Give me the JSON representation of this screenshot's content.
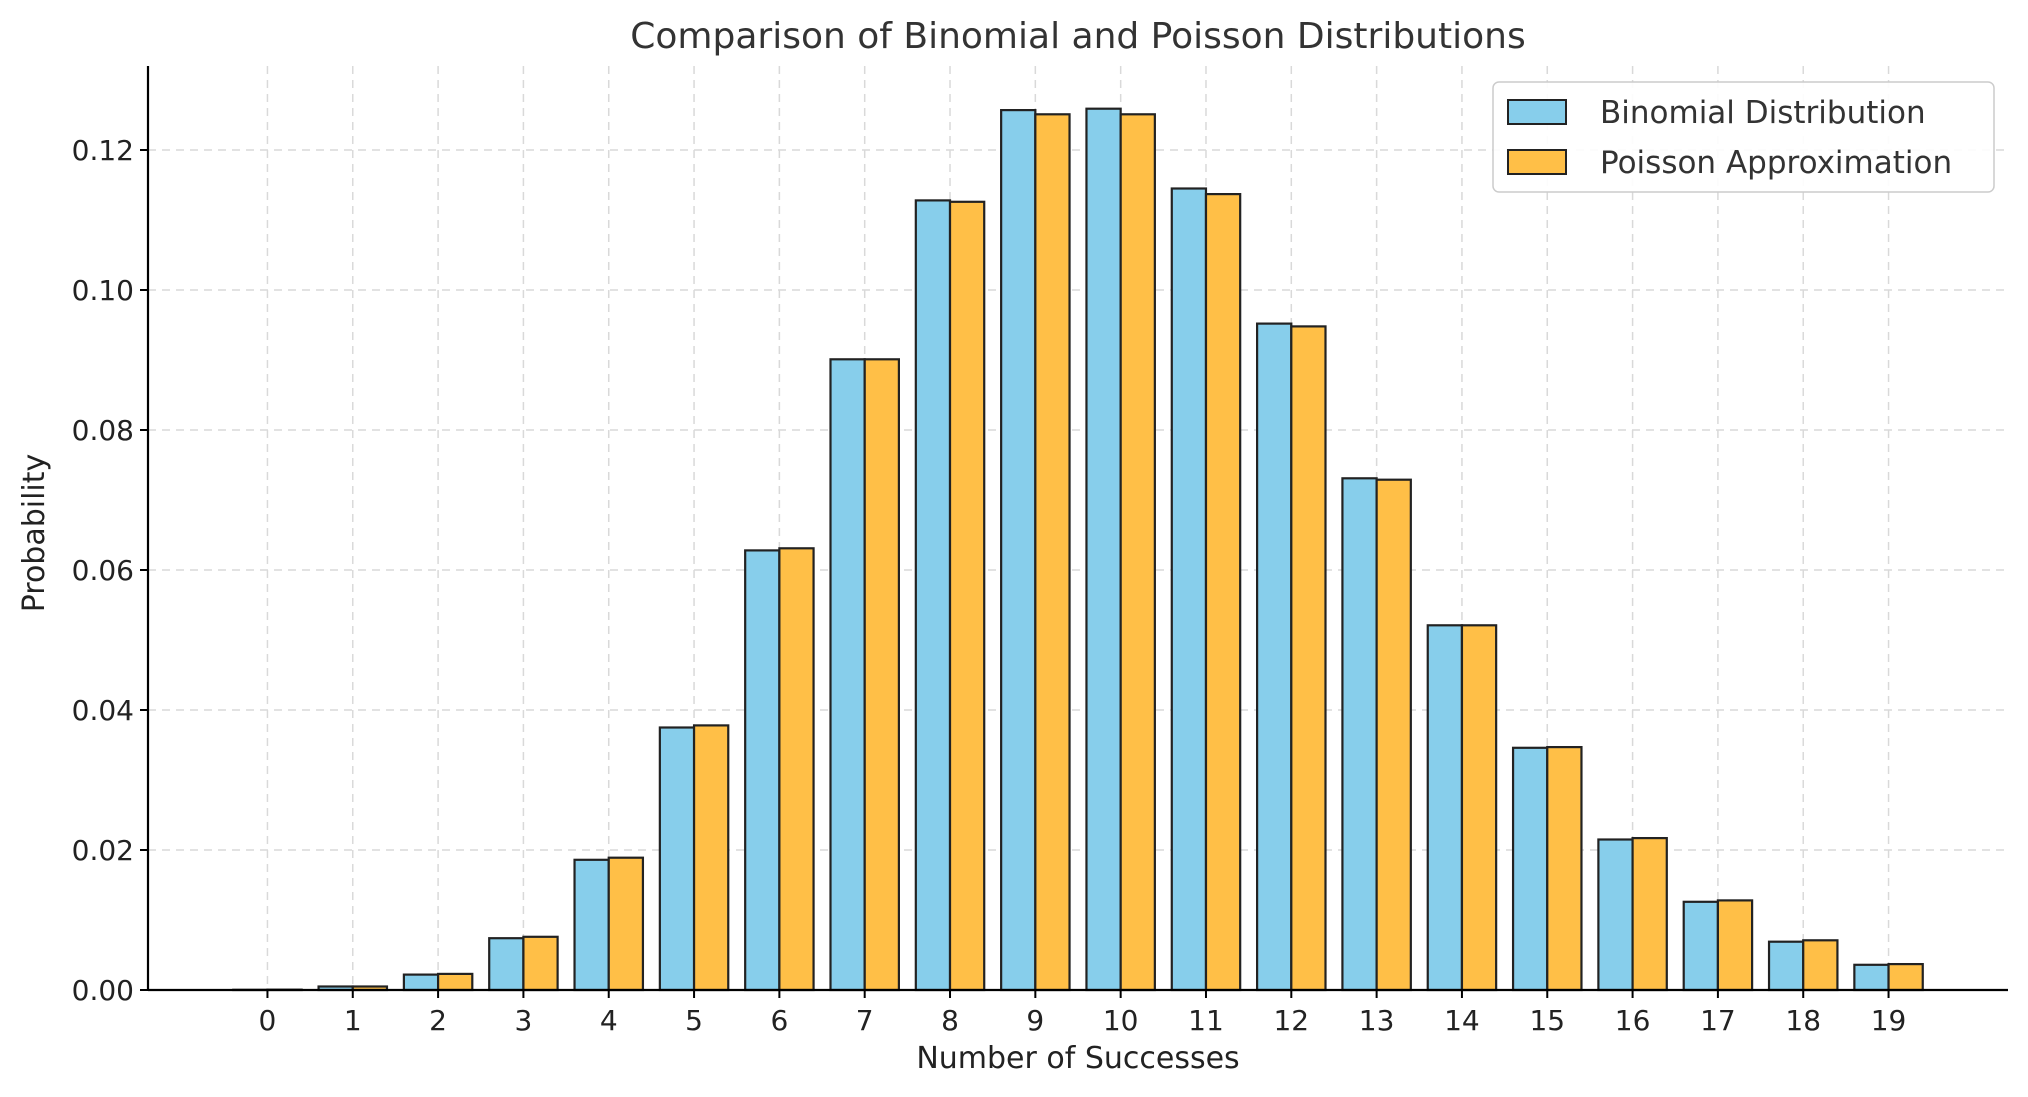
{
  "chart_data": {
    "type": "bar",
    "title": "Comparison of Binomial and Poisson Distributions",
    "xlabel": "Number of Successes",
    "ylabel": "Probability",
    "categories": [
      "0",
      "1",
      "2",
      "3",
      "4",
      "5",
      "6",
      "7",
      "8",
      "9",
      "10",
      "11",
      "12",
      "13",
      "14",
      "15",
      "16",
      "17",
      "18",
      "19"
    ],
    "series": [
      {
        "name": "Binomial Distribution",
        "color": "#87CEEB",
        "values": [
          3e-05,
          0.0005,
          0.0022,
          0.0074,
          0.0186,
          0.0375,
          0.0628,
          0.0901,
          0.1128,
          0.1257,
          0.1259,
          0.1145,
          0.0952,
          0.0731,
          0.0521,
          0.0346,
          0.0215,
          0.0126,
          0.0069,
          0.0036
        ]
      },
      {
        "name": "Poisson Approximation",
        "color": "#FFBF47",
        "values": [
          5e-05,
          0.0005,
          0.0023,
          0.0076,
          0.0189,
          0.0378,
          0.0631,
          0.0901,
          0.1126,
          0.1251,
          0.1251,
          0.1137,
          0.0948,
          0.0729,
          0.0521,
          0.0347,
          0.0217,
          0.0128,
          0.0071,
          0.0037
        ]
      }
    ],
    "ylim": [
      0,
      0.132
    ],
    "yticks": [
      "0.00",
      "0.02",
      "0.04",
      "0.06",
      "0.08",
      "0.10",
      "0.12"
    ],
    "grid": true,
    "legend_position": "top-right"
  }
}
